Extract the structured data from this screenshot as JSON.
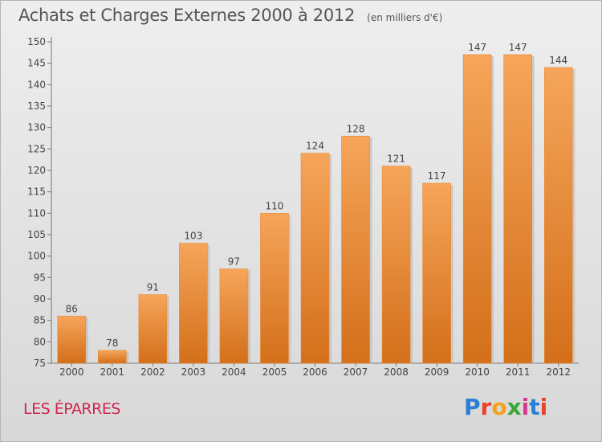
{
  "title": "Achats et Charges Externes 2000 à 2012",
  "unit": "(en milliers d'€)",
  "commune": "LES ÉPARRES",
  "brand": {
    "text": "Proxiti",
    "letters": [
      {
        "ch": "P",
        "color": "#2a7fd4"
      },
      {
        "ch": "r",
        "color": "#e8442a"
      },
      {
        "ch": "o",
        "color": "#f3a11f"
      },
      {
        "ch": "x",
        "color": "#3ba63c"
      },
      {
        "ch": "i",
        "color": "#d43a8f"
      },
      {
        "ch": "t",
        "color": "#2a7fd4"
      },
      {
        "ch": "i",
        "color": "#e8442a"
      }
    ]
  },
  "colors": {
    "bar_top": "#f6a55a",
    "bar_bottom": "#d36f1a",
    "axis": "#777777",
    "grid": "#cfcfcf",
    "text": "#444444"
  },
  "chart_data": {
    "type": "bar",
    "categories": [
      "2000",
      "2001",
      "2002",
      "2003",
      "2004",
      "2005",
      "2006",
      "2007",
      "2008",
      "2009",
      "2010",
      "2011",
      "2012"
    ],
    "values": [
      86,
      78,
      91,
      103,
      97,
      110,
      124,
      128,
      121,
      117,
      147,
      147,
      144
    ],
    "ylim": [
      75,
      150
    ],
    "yticks": [
      75,
      80,
      85,
      90,
      95,
      100,
      105,
      110,
      115,
      120,
      125,
      130,
      135,
      140,
      145,
      150
    ],
    "grid": false,
    "data_labels": true
  }
}
